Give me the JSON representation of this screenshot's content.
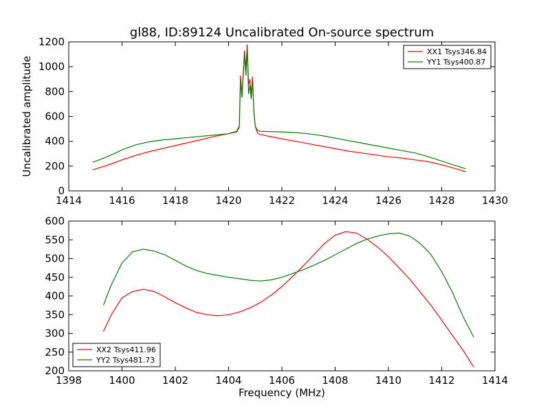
{
  "figure": {
    "title": "gl88, ID:89124 Uncalibrated On-source spectrum"
  },
  "chart_data": [
    {
      "type": "line",
      "title": "gl88, ID:89124 Uncalibrated On-source spectrum",
      "xlabel": "",
      "ylabel": "Uncalibrated amplitude",
      "xlim": [
        1414,
        1430
      ],
      "ylim": [
        0,
        1200
      ],
      "xticks": [
        1414,
        1416,
        1418,
        1420,
        1422,
        1424,
        1426,
        1428,
        1430
      ],
      "yticks": [
        0,
        200,
        400,
        600,
        800,
        1000,
        1200
      ],
      "legend_position": "top-right",
      "grid": false,
      "series": [
        {
          "name": "XX1 Tsys346.84",
          "color": "#ff0000",
          "x": [
            1414.9,
            1415.5,
            1416,
            1416.5,
            1417,
            1417.5,
            1418,
            1418.5,
            1419,
            1419.5,
            1420,
            1420.3,
            1420.4,
            1420.45,
            1420.5,
            1420.6,
            1420.65,
            1420.7,
            1420.75,
            1420.8,
            1420.85,
            1420.9,
            1420.95,
            1421.0,
            1421.1,
            1421.2,
            1421.5,
            1422,
            1422.5,
            1423,
            1423.5,
            1424,
            1424.5,
            1425,
            1425.5,
            1426,
            1426.5,
            1427,
            1427.5,
            1428,
            1428.5,
            1428.9
          ],
          "y": [
            170,
            210,
            250,
            285,
            315,
            340,
            365,
            390,
            415,
            440,
            460,
            480,
            520,
            930,
            770,
            1130,
            980,
            1180,
            850,
            900,
            770,
            920,
            640,
            520,
            460,
            455,
            440,
            420,
            400,
            380,
            360,
            340,
            320,
            305,
            290,
            275,
            265,
            250,
            235,
            210,
            180,
            155
          ]
        },
        {
          "name": "YY1 Tsys400.87",
          "color": "#008000",
          "x": [
            1414.9,
            1415.5,
            1416,
            1416.5,
            1417,
            1417.5,
            1418,
            1418.5,
            1419,
            1419.5,
            1420,
            1420.3,
            1420.4,
            1420.45,
            1420.5,
            1420.6,
            1420.65,
            1420.7,
            1420.75,
            1420.8,
            1420.85,
            1420.9,
            1420.95,
            1421.0,
            1421.1,
            1421.2,
            1421.5,
            1422,
            1422.5,
            1423,
            1423.5,
            1424,
            1424.5,
            1425,
            1425.5,
            1426,
            1426.5,
            1427,
            1427.5,
            1428,
            1428.5,
            1428.9
          ],
          "y": [
            230,
            280,
            330,
            370,
            395,
            410,
            420,
            430,
            440,
            450,
            460,
            475,
            510,
            890,
            750,
            1100,
            930,
            1150,
            780,
            850,
            740,
            880,
            630,
            520,
            485,
            480,
            478,
            475,
            470,
            460,
            445,
            425,
            405,
            385,
            365,
            345,
            325,
            305,
            275,
            240,
            205,
            178
          ]
        }
      ]
    },
    {
      "type": "line",
      "title": "",
      "xlabel": "Frequency (MHz)",
      "ylabel": "",
      "xlim": [
        1398,
        1414
      ],
      "ylim": [
        200,
        600
      ],
      "xticks": [
        1398,
        1400,
        1402,
        1404,
        1406,
        1408,
        1410,
        1412,
        1414
      ],
      "yticks": [
        200,
        250,
        300,
        350,
        400,
        450,
        500,
        550,
        600
      ],
      "legend_position": "bottom-left",
      "grid": false,
      "series": [
        {
          "name": "XX2 Tsys411.96",
          "color": "#ff0000",
          "x": [
            1399.3,
            1399.6,
            1400,
            1400.4,
            1400.8,
            1401.2,
            1401.6,
            1402,
            1402.4,
            1402.8,
            1403.2,
            1403.6,
            1404,
            1404.4,
            1404.8,
            1405.2,
            1405.6,
            1406,
            1406.4,
            1406.8,
            1407.2,
            1407.6,
            1408,
            1408.4,
            1408.8,
            1409.2,
            1409.6,
            1410,
            1410.4,
            1410.8,
            1411.2,
            1411.6,
            1412,
            1412.4,
            1412.8,
            1413.2
          ],
          "y": [
            305,
            350,
            395,
            412,
            418,
            412,
            398,
            382,
            368,
            356,
            350,
            347,
            350,
            357,
            368,
            383,
            402,
            425,
            452,
            480,
            510,
            540,
            562,
            572,
            568,
            552,
            530,
            505,
            475,
            445,
            410,
            375,
            335,
            295,
            255,
            210
          ]
        },
        {
          "name": "YY2 Tsys481.73",
          "color": "#008000",
          "x": [
            1399.3,
            1399.6,
            1400,
            1400.4,
            1400.8,
            1401.2,
            1401.6,
            1402,
            1402.4,
            1402.8,
            1403.2,
            1403.6,
            1404,
            1404.4,
            1404.8,
            1405.2,
            1405.6,
            1406,
            1406.4,
            1406.8,
            1407.2,
            1407.6,
            1408,
            1408.4,
            1408.8,
            1409.2,
            1409.6,
            1410,
            1410.4,
            1410.8,
            1411.2,
            1411.6,
            1412,
            1412.4,
            1412.8,
            1413.2
          ],
          "y": [
            375,
            430,
            488,
            518,
            525,
            520,
            510,
            495,
            480,
            468,
            460,
            455,
            450,
            446,
            442,
            440,
            443,
            450,
            460,
            470,
            482,
            495,
            510,
            525,
            540,
            552,
            560,
            566,
            568,
            560,
            540,
            510,
            465,
            410,
            345,
            290
          ]
        }
      ]
    }
  ]
}
